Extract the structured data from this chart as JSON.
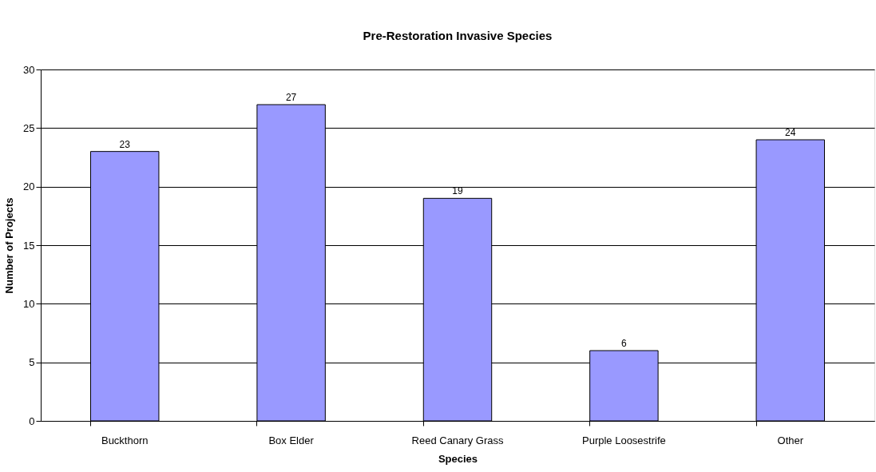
{
  "chart_data": {
    "type": "bar",
    "title": "Pre-Restoration Invasive Species",
    "xlabel": "Species",
    "ylabel": "Number of Projects",
    "categories": [
      "Buckthorn",
      "Box Elder",
      "Reed Canary Grass",
      "Purple Loosestrife",
      "Other"
    ],
    "values": [
      23,
      27,
      19,
      6,
      24
    ],
    "color": "#9999ff",
    "ylim": [
      0,
      30
    ],
    "yticks": [
      0,
      5,
      10,
      15,
      20,
      25,
      30
    ],
    "grid": "y",
    "data_labels": true
  }
}
